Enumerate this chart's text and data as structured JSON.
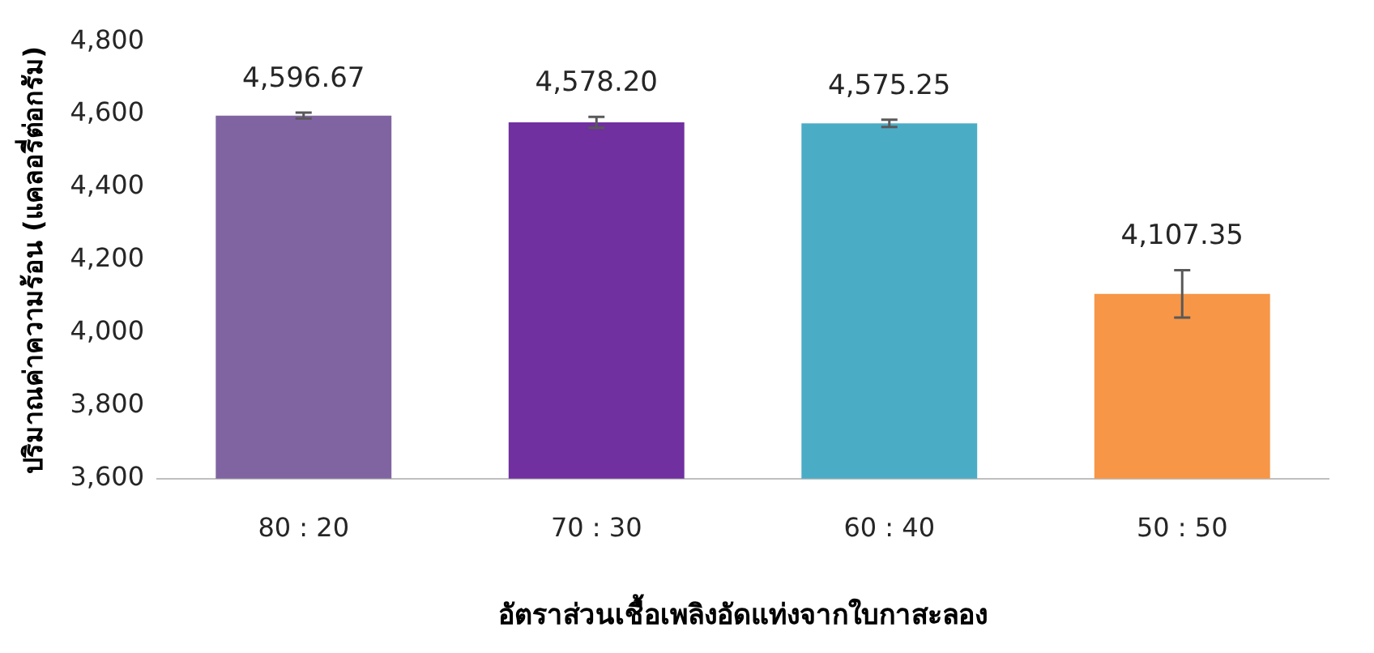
{
  "chart_data": {
    "type": "bar",
    "xlabel": "อัตราส่วนเชื้อเพลิงอัดแท่งจากใบกาสะลอง",
    "ylabel": "ปริมาณค่าความร้อน (แคลอรี่ต่อกรัม)",
    "categories": [
      "80 : 20",
      "70 : 30",
      "60 : 40",
      "50 : 50"
    ],
    "values": [
      4596.67,
      4578.2,
      4575.25,
      4107.35
    ],
    "value_labels": [
      "4,596.67",
      "4,578.20",
      "4,575.25",
      "4,107.35"
    ],
    "errors": [
      8,
      15,
      10,
      65
    ],
    "colors": [
      "#8064a2",
      "#7030a0",
      "#4bacc6",
      "#f79646"
    ],
    "ylim": [
      3600,
      4800
    ],
    "yticks": [
      {
        "value": 3600,
        "label": "3,600"
      },
      {
        "value": 3800,
        "label": "3,800"
      },
      {
        "value": 4000,
        "label": "4,000"
      },
      {
        "value": 4200,
        "label": "4,200"
      },
      {
        "value": 4400,
        "label": "4,400"
      },
      {
        "value": 4600,
        "label": "4,600"
      },
      {
        "value": 4800,
        "label": "4,800"
      }
    ],
    "grid": false,
    "legend": false
  }
}
